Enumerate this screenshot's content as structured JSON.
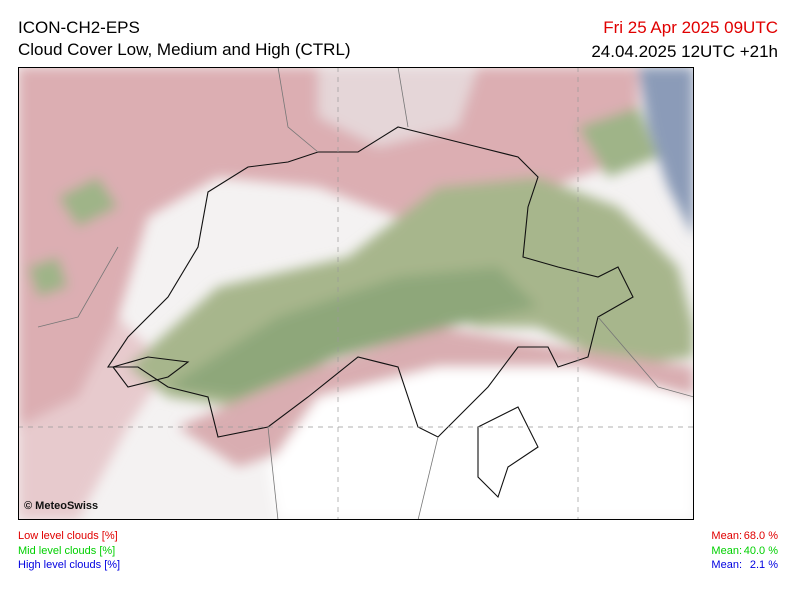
{
  "header": {
    "title": "ICON-CH2-EPS",
    "subtitle": "Cloud Cover Low, Medium and High (CTRL)",
    "valid_time": "Fri 25 Apr 2025 09UTC",
    "run_time": "24.04.2025 12UTC +21h"
  },
  "map": {
    "credit": "© MeteoSwiss"
  },
  "legend": [
    {
      "label": "Low level clouds [%]",
      "mean_label": "Mean:",
      "mean": "68.0 %",
      "color": "#e00000"
    },
    {
      "label": "Mid level clouds [%]",
      "mean_label": "Mean:",
      "mean": "40.0 %",
      "color": "#00d000"
    },
    {
      "label": "High level clouds [%]",
      "mean_label": "Mean:",
      "mean": "2.1 %",
      "color": "#0000e0"
    }
  ]
}
